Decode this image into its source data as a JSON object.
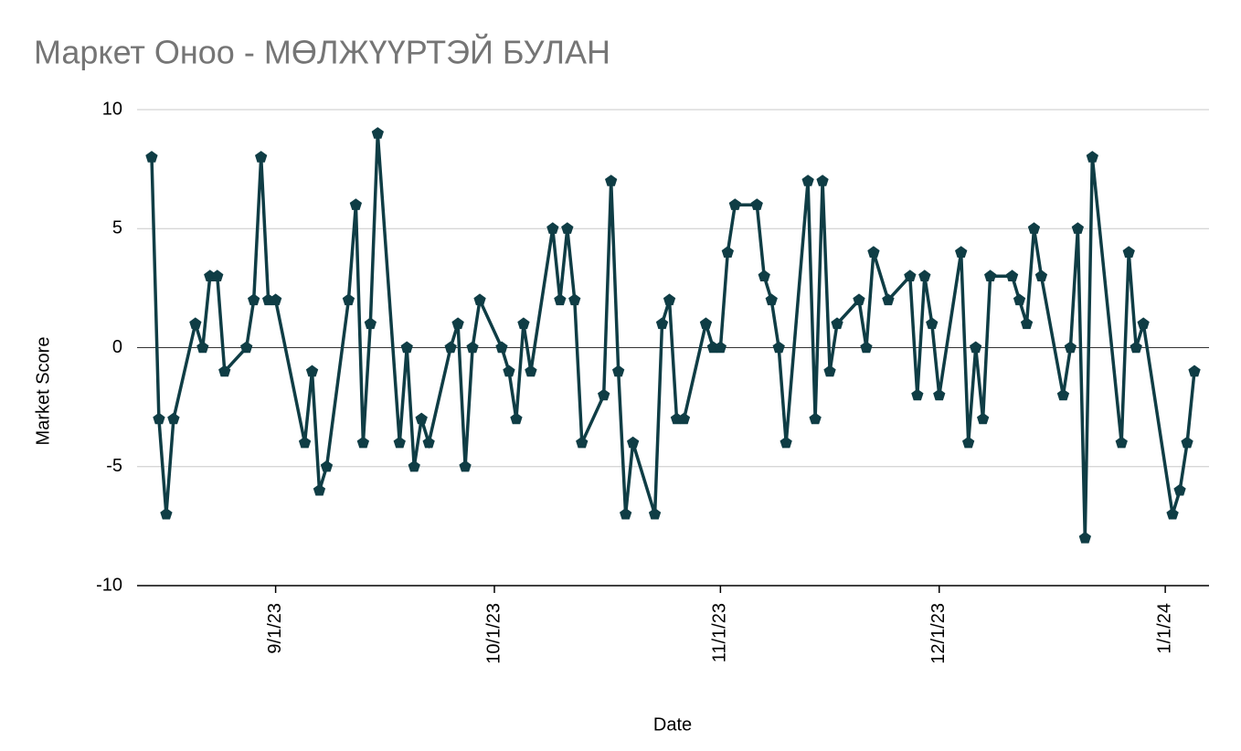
{
  "chart_data": {
    "type": "line",
    "title": "Маркет Оноо - МӨЛЖҮҮРТЭЙ БУЛАН",
    "x_label": "Date",
    "y_label": "Market Score",
    "x": [
      "8/15/23",
      "8/16/23",
      "8/17/23",
      "8/18/23",
      "8/21/23",
      "8/22/23",
      "8/23/23",
      "8/24/23",
      "8/25/23",
      "8/28/23",
      "8/29/23",
      "8/30/23",
      "8/31/23",
      "9/1/23",
      "9/5/23",
      "9/6/23",
      "9/7/23",
      "9/8/23",
      "9/11/23",
      "9/12/23",
      "9/13/23",
      "9/14/23",
      "9/15/23",
      "9/18/23",
      "9/19/23",
      "9/20/23",
      "9/21/23",
      "9/22/23",
      "9/25/23",
      "9/26/23",
      "9/27/23",
      "9/28/23",
      "9/29/23",
      "10/2/23",
      "10/3/23",
      "10/4/23",
      "10/5/23",
      "10/6/23",
      "10/9/23",
      "10/10/23",
      "10/11/23",
      "10/12/23",
      "10/13/23",
      "10/16/23",
      "10/17/23",
      "10/18/23",
      "10/19/23",
      "10/20/23",
      "10/23/23",
      "10/24/23",
      "10/25/23",
      "10/26/23",
      "10/27/23",
      "10/30/23",
      "10/31/23",
      "11/1/23",
      "11/2/23",
      "11/3/23",
      "11/6/23",
      "11/7/23",
      "11/8/23",
      "11/9/23",
      "11/10/23",
      "11/13/23",
      "11/14/23",
      "11/15/23",
      "11/16/23",
      "11/17/23",
      "11/20/23",
      "11/21/23",
      "11/22/23",
      "11/24/23",
      "11/27/23",
      "11/28/23",
      "11/29/23",
      "11/30/23",
      "12/1/23",
      "12/4/23",
      "12/5/23",
      "12/6/23",
      "12/7/23",
      "12/8/23",
      "12/11/23",
      "12/12/23",
      "12/13/23",
      "12/14/23",
      "12/15/23",
      "12/18/23",
      "12/19/23",
      "12/20/23",
      "12/21/23",
      "12/22/23",
      "12/26/23",
      "12/27/23",
      "12/28/23",
      "12/29/23",
      "1/2/24",
      "1/3/24",
      "1/4/24",
      "1/5/24"
    ],
    "values": [
      8,
      -3,
      -7,
      -3,
      1,
      0,
      3,
      3,
      -1,
      0,
      2,
      8,
      2,
      2,
      -4,
      -1,
      -6,
      -5,
      2,
      6,
      -4,
      1,
      9,
      -4,
      0,
      -5,
      -3,
      -4,
      0,
      1,
      -5,
      0,
      2,
      0,
      -1,
      -3,
      1,
      -1,
      5,
      2,
      5,
      2,
      -4,
      -2,
      7,
      -1,
      -7,
      -4,
      -7,
      1,
      2,
      -3,
      -3,
      1,
      0,
      0,
      4,
      6,
      6,
      3,
      2,
      0,
      -4,
      7,
      -3,
      7,
      -1,
      1,
      2,
      0,
      4,
      2,
      3,
      -2,
      3,
      1,
      -2,
      4,
      -4,
      0,
      -3,
      3,
      3,
      2,
      1,
      5,
      3,
      -2,
      0,
      5,
      -8,
      8,
      -4,
      4,
      0,
      1,
      -7,
      -6,
      -4,
      -1
    ],
    "color": "#0f3d45",
    "xlim": [
      "8/13/23",
      "1/7/24"
    ],
    "xticks": [
      "9/1/23",
      "10/1/23",
      "11/1/23",
      "12/1/23",
      "1/1/24"
    ],
    "ylim": [
      -10,
      10
    ],
    "yticks": [
      -10,
      -5,
      0,
      5,
      10
    ],
    "grid": true
  }
}
